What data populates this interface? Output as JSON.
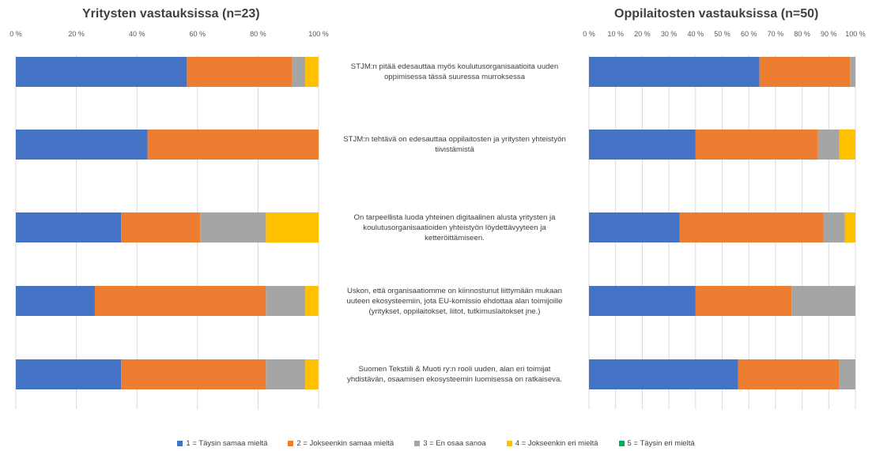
{
  "chart_data": [
    {
      "type": "bar",
      "orientation": "horizontal",
      "stacked": "percent",
      "title": "Yritysten vastauksissa (n=23)",
      "ticks": [
        "0 %",
        "20 %",
        "40 %",
        "60 %",
        "80 %",
        "100 %"
      ],
      "xlim": [
        0,
        100
      ],
      "categories": [
        "STJM:n pitää edesauttaa myös koulutusorganisaatioita uuden oppimisessa tässä suuressa murroksessa",
        "STJM:n tehtävä on edesauttaa oppilaitosten ja yritysten yhteistyön tiivistämistä",
        "On tarpeellista luoda yhteinen digitaalinen alusta yritysten ja koulutusorganisaatioiden yhteistyön löydettävyyteen ja ketteröittämiseen.",
        "Uskon, että organisaatiomme on kiinnostunut liittymään mukaan uuteen ekosysteemiin, jota EU-komissio ehdottaa alan toimijoille (yritykset, oppilaitokset, liitot, tutkimuslaitokset jne.)",
        "Suomen Tekstiili & Muoti ry:n rooli uuden, alan eri toimijat yhdistävän, osaamisen ekosysteemin luomisessa on ratkaiseva."
      ],
      "series": [
        {
          "name": "1 = Täysin samaa mieltä",
          "values": [
            56.5,
            43.5,
            34.8,
            26.1,
            34.8
          ]
        },
        {
          "name": "2 = Jokseenkin samaa mieltä",
          "values": [
            34.8,
            56.5,
            26.1,
            56.5,
            47.8
          ]
        },
        {
          "name": "3 = En osaa sanoa",
          "values": [
            4.3,
            0,
            21.7,
            13.0,
            13.0
          ]
        },
        {
          "name": "4 = Jokseenkin eri mieltä",
          "values": [
            4.3,
            0,
            17.4,
            4.3,
            4.3
          ]
        },
        {
          "name": "5 = Täysin eri mieltä",
          "values": [
            0,
            0,
            0,
            0,
            0
          ]
        }
      ]
    },
    {
      "type": "bar",
      "orientation": "horizontal",
      "stacked": "percent",
      "title": "Oppilaitosten vastauksissa (n=50)",
      "ticks": [
        "0 %",
        "10 %",
        "20 %",
        "30 %",
        "40 %",
        "50 %",
        "60 %",
        "70 %",
        "80 %",
        "90 %",
        "100 %"
      ],
      "xlim": [
        0,
        100
      ],
      "categories": [
        "STJM:n pitää edesauttaa myös koulutusorganisaatioita uuden oppimisessa tässä suuressa murroksessa",
        "STJM:n tehtävä on edesauttaa oppilaitosten ja yritysten yhteistyön tiivistämistä",
        "On tarpeellista luoda yhteinen digitaalinen alusta yritysten ja koulutusorganisaatioiden yhteistyön löydettävyyteen ja ketteröittämiseen.",
        "Uskon, että organisaatiomme on kiinnostunut liittymään mukaan uuteen ekosysteemiin, jota EU-komissio ehdottaa alan toimijoille (yritykset, oppilaitokset, liitot, tutkimuslaitokset jne.)",
        "Suomen Tekstiili & Muoti ry:n rooli uuden, alan eri toimijat yhdistävän, osaamisen ekosysteemin luomisessa on ratkaiseva."
      ],
      "series": [
        {
          "name": "1 = Täysin samaa mieltä",
          "values": [
            64,
            40,
            34,
            40,
            56
          ]
        },
        {
          "name": "2 = Jokseenkin samaa mieltä",
          "values": [
            34,
            46,
            54,
            36,
            38
          ]
        },
        {
          "name": "3 = En osaa sanoa",
          "values": [
            2,
            8,
            8,
            24,
            6
          ]
        },
        {
          "name": "4 = Jokseenkin eri mieltä",
          "values": [
            0,
            6,
            4,
            0,
            0
          ]
        },
        {
          "name": "5 = Täysin eri mieltä",
          "values": [
            0,
            0,
            0,
            0,
            0
          ]
        }
      ]
    }
  ],
  "statements": [
    [
      "STJM:n pitää edesauttaa myös koulutusorganisaatioita uuden",
      "oppimisessa tässä suuressa murroksessa"
    ],
    [
      "STJM:n tehtävä on edesauttaa oppilaitosten ja yritysten yhteistyön",
      "tiivistämistä"
    ],
    [
      "On tarpeellista luoda yhteinen digitaalinen alusta yritysten ja",
      "koulutusorganisaatioiden yhteistyön löydettävyyteen ja",
      "ketteröittämiseen."
    ],
    [
      "Uskon, että organisaatiomme on kiinnostunut liittymään mukaan",
      "uuteen ekosysteemiin, jota EU-komissio ehdottaa alan toimijoille",
      "(yritykset, oppilaitokset, liitot, tutkimuslaitokset jne.)"
    ],
    [
      "Suomen Tekstiili & Muoti ry:n rooli uuden, alan eri toimijat",
      "yhdistävän, osaamisen ekosysteemin luomisessa on ratkaiseva."
    ]
  ],
  "legend": [
    {
      "label": "1 = Täysin samaa mieltä",
      "color": "#4472C4"
    },
    {
      "label": "2 = Jokseenkin samaa mieltä",
      "color": "#ED7D31"
    },
    {
      "label": "3 = En osaa sanoa",
      "color": "#A5A5A5"
    },
    {
      "label": "4 = Jokseenkin eri mieltä",
      "color": "#FFC000"
    },
    {
      "label": "5 = Täysin eri mieltä",
      "color": "#00B050"
    }
  ],
  "colors": [
    "#4472C4",
    "#ED7D31",
    "#A5A5A5",
    "#FFC000",
    "#00B050"
  ],
  "gridline_color": "#D9D9D9"
}
